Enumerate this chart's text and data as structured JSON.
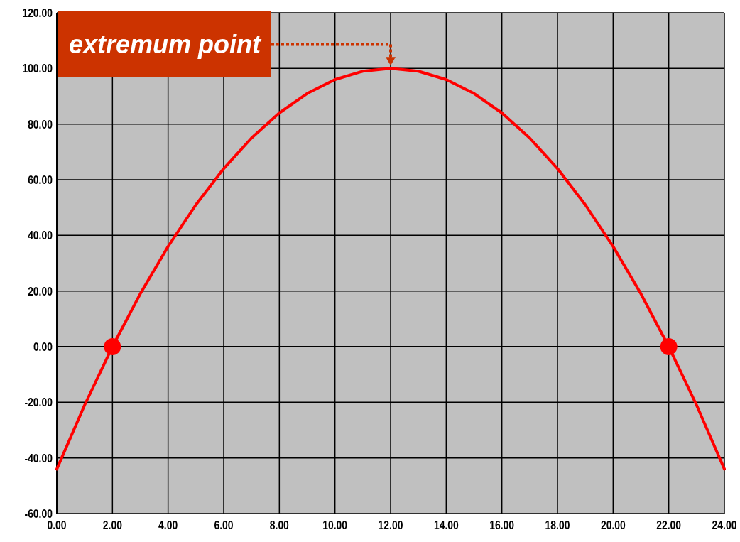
{
  "chart_data": {
    "type": "line",
    "x": [
      0,
      1,
      2,
      3,
      4,
      5,
      6,
      7,
      8,
      9,
      10,
      11,
      12,
      13,
      14,
      15,
      16,
      17,
      18,
      19,
      20,
      21,
      22,
      23,
      24
    ],
    "series": [
      {
        "color": "#ff0000",
        "values": [
          -44,
          -21,
          0,
          19,
          36,
          51,
          64,
          75,
          84,
          91,
          96,
          99,
          100,
          99,
          96,
          91,
          84,
          75,
          64,
          51,
          36,
          19,
          0,
          -21,
          -44
        ],
        "marker": "none",
        "line_style": "solid"
      },
      {
        "type": "scatter",
        "color": "#ff0000",
        "x": [
          2,
          22
        ],
        "values": [
          0,
          0
        ],
        "marker": "circle"
      }
    ],
    "xlim": [
      0,
      24
    ],
    "xticks": [
      {
        "value": 0,
        "label": "0.00"
      },
      {
        "value": 2,
        "label": "2.00"
      },
      {
        "value": 4,
        "label": "4.00"
      },
      {
        "value": 6,
        "label": "6.00"
      },
      {
        "value": 8,
        "label": "8.00"
      },
      {
        "value": 10,
        "label": "10.00"
      },
      {
        "value": 12,
        "label": "12.00"
      },
      {
        "value": 14,
        "label": "14.00"
      },
      {
        "value": 16,
        "label": "16.00"
      },
      {
        "value": 18,
        "label": "18.00"
      },
      {
        "value": 20,
        "label": "20.00"
      },
      {
        "value": 22,
        "label": "22.00"
      },
      {
        "value": 24,
        "label": "24.00"
      }
    ],
    "ylim": [
      -60,
      120
    ],
    "yticks": [
      {
        "value": -60,
        "label": "-60.00"
      },
      {
        "value": -40,
        "label": "-40.00"
      },
      {
        "value": -20,
        "label": "-20.00"
      },
      {
        "value": 0,
        "label": "0.00"
      },
      {
        "value": 20,
        "label": "20.00"
      },
      {
        "value": 40,
        "label": "40.00"
      },
      {
        "value": 60,
        "label": "60.00"
      },
      {
        "value": 80,
        "label": "80.00"
      },
      {
        "value": 100,
        "label": "100.00"
      },
      {
        "value": 120,
        "label": "120.00"
      }
    ],
    "grid": true,
    "annotations": [
      "extremum point"
    ]
  }
}
